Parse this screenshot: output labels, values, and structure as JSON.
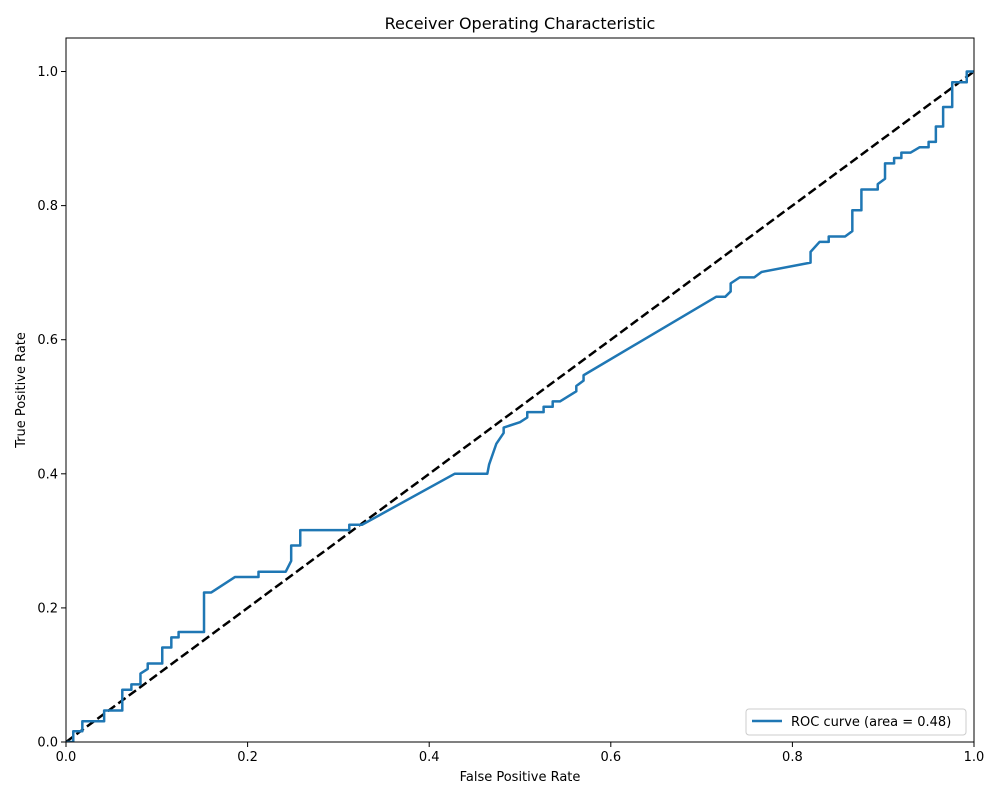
{
  "chart_data": {
    "type": "line",
    "title": "Receiver Operating Characteristic",
    "xlabel": "False Positive Rate",
    "ylabel": "True Positive Rate",
    "xlim": [
      0.0,
      1.0
    ],
    "ylim": [
      0.0,
      1.05
    ],
    "xticks": [
      0.0,
      0.2,
      0.4,
      0.6,
      0.8,
      1.0
    ],
    "yticks": [
      0.0,
      0.2,
      0.4,
      0.6,
      0.8,
      1.0
    ],
    "xtick_labels": [
      "0.0",
      "0.2",
      "0.4",
      "0.6",
      "0.8",
      "1.0"
    ],
    "ytick_labels": [
      "0.0",
      "0.2",
      "0.4",
      "0.6",
      "0.8",
      "1.0"
    ],
    "grid": false,
    "legend_position": "lower-right",
    "series": [
      {
        "name": "ROC curve (area = 0.48)",
        "color": "#1f77b4",
        "style": "solid",
        "x": [
          0.0,
          0.008,
          0.008,
          0.018,
          0.018,
          0.042,
          0.042,
          0.062,
          0.062,
          0.072,
          0.072,
          0.082,
          0.082,
          0.09,
          0.09,
          0.106,
          0.106,
          0.116,
          0.116,
          0.124,
          0.124,
          0.152,
          0.152,
          0.16,
          0.186,
          0.212,
          0.212,
          0.242,
          0.248,
          0.248,
          0.258,
          0.258,
          0.312,
          0.312,
          0.326,
          0.428,
          0.464,
          0.466,
          0.474,
          0.482,
          0.482,
          0.5,
          0.508,
          0.508,
          0.526,
          0.526,
          0.536,
          0.536,
          0.544,
          0.562,
          0.562,
          0.57,
          0.57,
          0.716,
          0.726,
          0.732,
          0.732,
          0.742,
          0.758,
          0.766,
          0.82,
          0.82,
          0.83,
          0.84,
          0.84,
          0.858,
          0.866,
          0.866,
          0.876,
          0.876,
          0.894,
          0.894,
          0.902,
          0.902,
          0.912,
          0.912,
          0.92,
          0.92,
          0.93,
          0.94,
          0.95,
          0.95,
          0.958,
          0.958,
          0.966,
          0.966,
          0.976,
          0.976,
          0.992,
          0.992,
          1.0
        ],
        "y": [
          0.0,
          0.0,
          0.016,
          0.016,
          0.031,
          0.031,
          0.047,
          0.047,
          0.078,
          0.078,
          0.086,
          0.086,
          0.102,
          0.109,
          0.117,
          0.117,
          0.141,
          0.141,
          0.156,
          0.156,
          0.164,
          0.164,
          0.223,
          0.223,
          0.246,
          0.246,
          0.254,
          0.254,
          0.27,
          0.293,
          0.293,
          0.316,
          0.316,
          0.324,
          0.324,
          0.4,
          0.4,
          0.414,
          0.445,
          0.461,
          0.469,
          0.477,
          0.484,
          0.492,
          0.492,
          0.5,
          0.5,
          0.508,
          0.508,
          0.523,
          0.531,
          0.539,
          0.547,
          0.664,
          0.664,
          0.672,
          0.684,
          0.693,
          0.693,
          0.701,
          0.715,
          0.731,
          0.746,
          0.746,
          0.754,
          0.754,
          0.762,
          0.793,
          0.793,
          0.824,
          0.824,
          0.832,
          0.84,
          0.863,
          0.863,
          0.871,
          0.871,
          0.879,
          0.879,
          0.887,
          0.887,
          0.895,
          0.895,
          0.918,
          0.918,
          0.947,
          0.947,
          0.984,
          0.984,
          1.0,
          1.0
        ]
      },
      {
        "name": "",
        "color": "#000000",
        "style": "dashed",
        "x": [
          0.0,
          1.0
        ],
        "y": [
          0.0,
          1.0
        ]
      }
    ]
  }
}
